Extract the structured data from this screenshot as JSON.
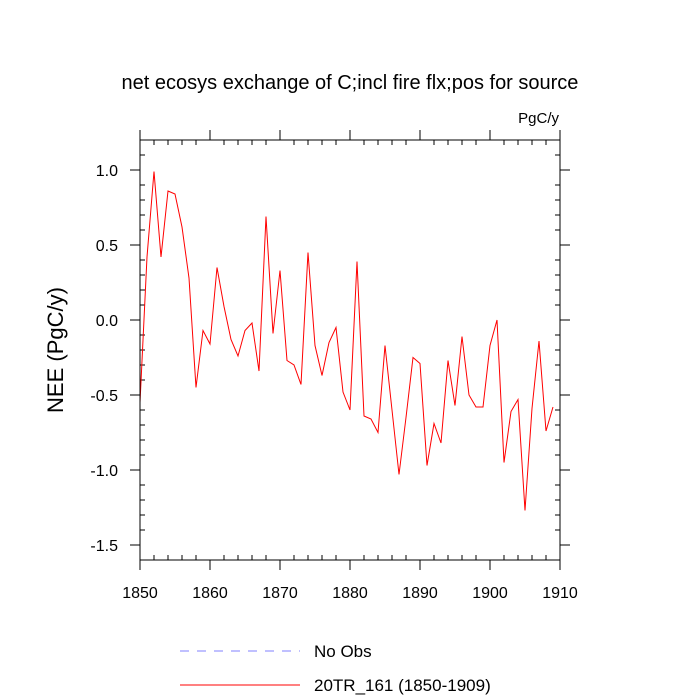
{
  "chart_data": {
    "type": "line",
    "title": "net ecosys exchange of C;incl fire flx;pos for source",
    "units_label": "PgC/y",
    "ylabel": "NEE  (PgC/y)",
    "xlabel": "",
    "xlim": [
      1850,
      1910
    ],
    "ylim": [
      -1.6,
      1.2
    ],
    "x_ticks": [
      1850,
      1860,
      1870,
      1880,
      1890,
      1900,
      1910
    ],
    "y_ticks": [
      -1.5,
      -1.0,
      -0.5,
      0.0,
      0.5,
      1.0
    ],
    "x_tick_labels": [
      "1850",
      "1860",
      "1870",
      "1880",
      "1890",
      "1900",
      "1910"
    ],
    "y_tick_labels": [
      "-1.5",
      "-1.0",
      "-0.5",
      "0.0",
      "0.5",
      "1.0"
    ],
    "grid": false,
    "legend_position": "bottom-left",
    "series": [
      {
        "name": "No Obs",
        "color": "#8080ff",
        "dashed": true,
        "x": [],
        "values": []
      },
      {
        "name": "20TR_161 (1850-1909)",
        "color": "#ff0000",
        "dashed": false,
        "x": [
          1850,
          1851,
          1852,
          1853,
          1854,
          1855,
          1856,
          1857,
          1858,
          1859,
          1860,
          1861,
          1862,
          1863,
          1864,
          1865,
          1866,
          1867,
          1868,
          1869,
          1870,
          1871,
          1872,
          1873,
          1874,
          1875,
          1876,
          1877,
          1878,
          1879,
          1880,
          1881,
          1882,
          1883,
          1884,
          1885,
          1886,
          1887,
          1888,
          1889,
          1890,
          1891,
          1892,
          1893,
          1894,
          1895,
          1896,
          1897,
          1898,
          1899,
          1900,
          1901,
          1902,
          1903,
          1904,
          1905,
          1906,
          1907,
          1908,
          1909
        ],
        "values": [
          -0.55,
          0.42,
          0.99,
          0.42,
          0.86,
          0.84,
          0.62,
          0.28,
          -0.45,
          -0.07,
          -0.16,
          0.35,
          0.09,
          -0.13,
          -0.24,
          -0.07,
          -0.02,
          -0.34,
          0.69,
          -0.09,
          0.33,
          -0.27,
          -0.3,
          -0.43,
          0.45,
          -0.17,
          -0.37,
          -0.15,
          -0.05,
          -0.48,
          -0.6,
          0.39,
          -0.64,
          -0.66,
          -0.75,
          -0.17,
          -0.6,
          -1.03,
          -0.65,
          -0.25,
          -0.29,
          -0.97,
          -0.69,
          -0.82,
          -0.27,
          -0.57,
          -0.11,
          -0.5,
          -0.58,
          -0.58,
          -0.17,
          0.0,
          -0.95,
          -0.61,
          -0.53,
          -1.27,
          -0.59,
          -0.14,
          -0.74,
          -0.58
        ]
      }
    ]
  }
}
